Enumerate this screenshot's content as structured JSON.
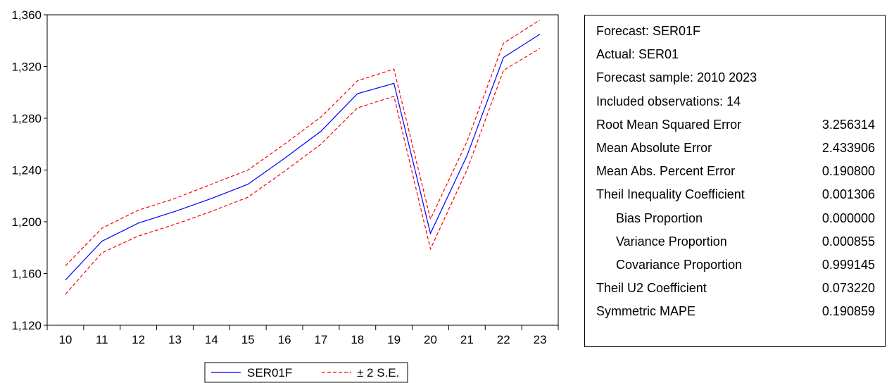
{
  "chart_data": {
    "type": "line",
    "categories": [
      "10",
      "11",
      "12",
      "13",
      "14",
      "15",
      "16",
      "17",
      "18",
      "19",
      "20",
      "21",
      "22",
      "23"
    ],
    "series": [
      {
        "name": "SER01F",
        "color": "#0000ff",
        "style": "solid",
        "values": [
          1155,
          1185,
          1199,
          1208,
          1218,
          1229,
          1249,
          1270,
          1299,
          1307,
          1191,
          1251,
          1327,
          1345
        ]
      },
      {
        "name": "± 2 S.E.",
        "color": "#ff0000",
        "style": "dashed",
        "values": [
          1166,
          1195,
          1209,
          1218,
          1229,
          1240,
          1260,
          1281,
          1309,
          1318,
          1202,
          1262,
          1338,
          1356
        ]
      },
      {
        "name": "",
        "color": "#ff0000",
        "style": "dashed",
        "values": [
          1144,
          1176,
          1189,
          1198,
          1208,
          1219,
          1239,
          1260,
          1288,
          1297,
          1179,
          1240,
          1317,
          1334
        ]
      }
    ],
    "ylim": [
      1120,
      1360
    ],
    "yticks": [
      1120,
      1160,
      1200,
      1240,
      1280,
      1320,
      1360
    ],
    "ytick_labels": [
      "1,120",
      "1,160",
      "1,200",
      "1,240",
      "1,280",
      "1,320",
      "1,360"
    ],
    "legend": {
      "placement": "bottom-center",
      "entries": [
        "SER01F",
        "± 2 S.E."
      ]
    },
    "grid": false,
    "xlabel": "",
    "ylabel": "",
    "title": ""
  },
  "stats": {
    "rows": [
      {
        "label": "Forecast: SER01F",
        "value": ""
      },
      {
        "label": "Actual: SER01",
        "value": ""
      },
      {
        "label": "Forecast sample: 2010 2023",
        "value": ""
      },
      {
        "label": "Included observations: 14",
        "value": ""
      },
      {
        "label": "Root Mean Squared Error",
        "value": "3.256314"
      },
      {
        "label": "Mean Absolute Error",
        "value": "2.433906"
      },
      {
        "label": "Mean Abs. Percent Error",
        "value": "0.190800"
      },
      {
        "label": "Theil Inequality Coefficient",
        "value": "0.001306"
      },
      {
        "label": "Bias Proportion",
        "value": "0.000000",
        "indent": true
      },
      {
        "label": "Variance Proportion",
        "value": "0.000855",
        "indent": true
      },
      {
        "label": "Covariance Proportion",
        "value": "0.999145",
        "indent": true
      },
      {
        "label": "Theil U2 Coefficient",
        "value": "0.073220"
      },
      {
        "label": "Symmetric MAPE",
        "value": "0.190859"
      }
    ]
  }
}
